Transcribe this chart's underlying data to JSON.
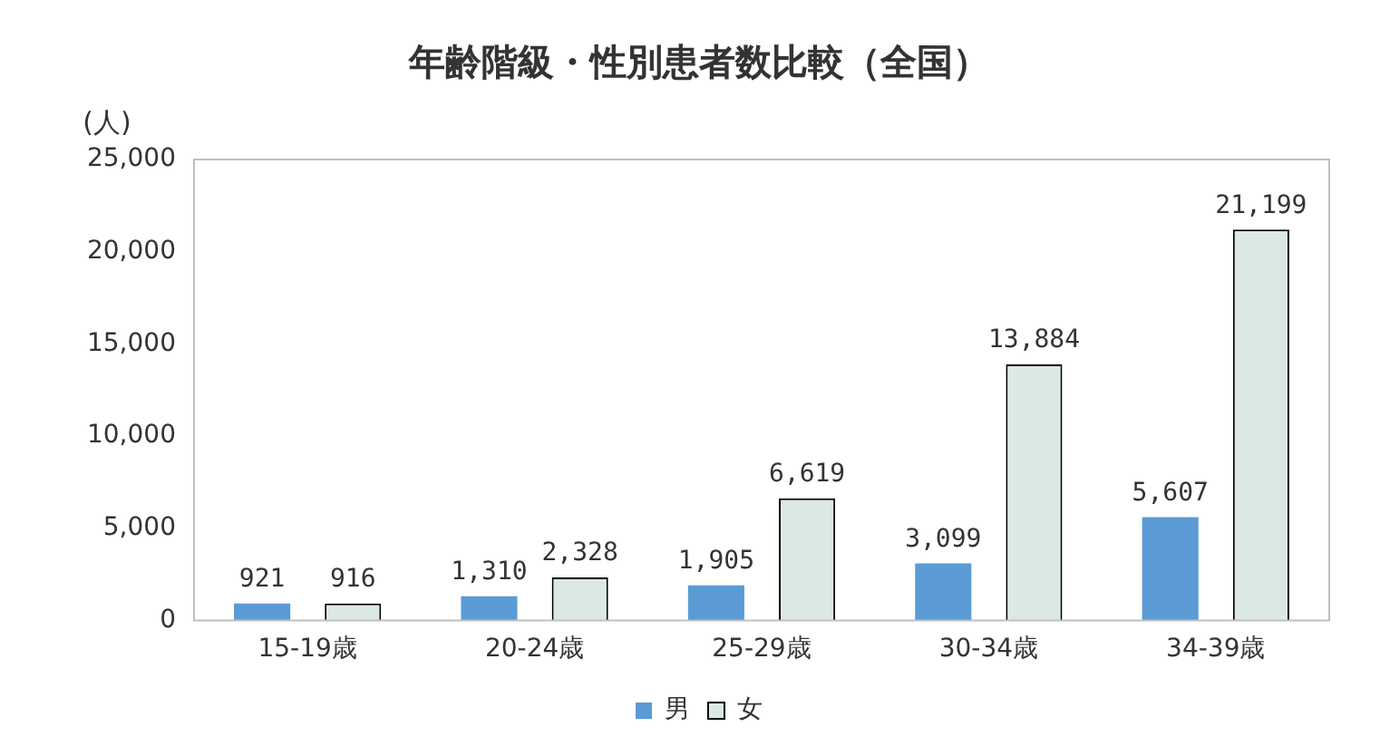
{
  "chart_data": {
    "type": "bar",
    "title": "年齢階級・性別患者数比較（全国）",
    "ylabel": "(人)",
    "categories": [
      "15-19歳",
      "20-24歳",
      "25-29歳",
      "30-34歳",
      "34-39歳"
    ],
    "series": [
      {
        "name": "男",
        "color": "#5b9bd5",
        "values": [
          921,
          1310,
          1905,
          3099,
          5607
        ],
        "value_labels": [
          "921",
          "1,310",
          "1,905",
          "3,099",
          "5,607"
        ]
      },
      {
        "name": "女",
        "color": "#dce8e4",
        "values": [
          916,
          2328,
          6619,
          13884,
          21199
        ],
        "value_labels": [
          "916",
          "2,328",
          "6,619",
          "13,884",
          "21,199"
        ]
      }
    ],
    "ylim": [
      0,
      25000
    ],
    "yticks": [
      {
        "value": 0,
        "label": "0"
      },
      {
        "value": 5000,
        "label": "5,000"
      },
      {
        "value": 10000,
        "label": "10,000"
      },
      {
        "value": 15000,
        "label": "15,000"
      },
      {
        "value": 20000,
        "label": "20,000"
      },
      {
        "value": 25000,
        "label": "25,000"
      }
    ],
    "grid": false,
    "legend": "bottom"
  }
}
